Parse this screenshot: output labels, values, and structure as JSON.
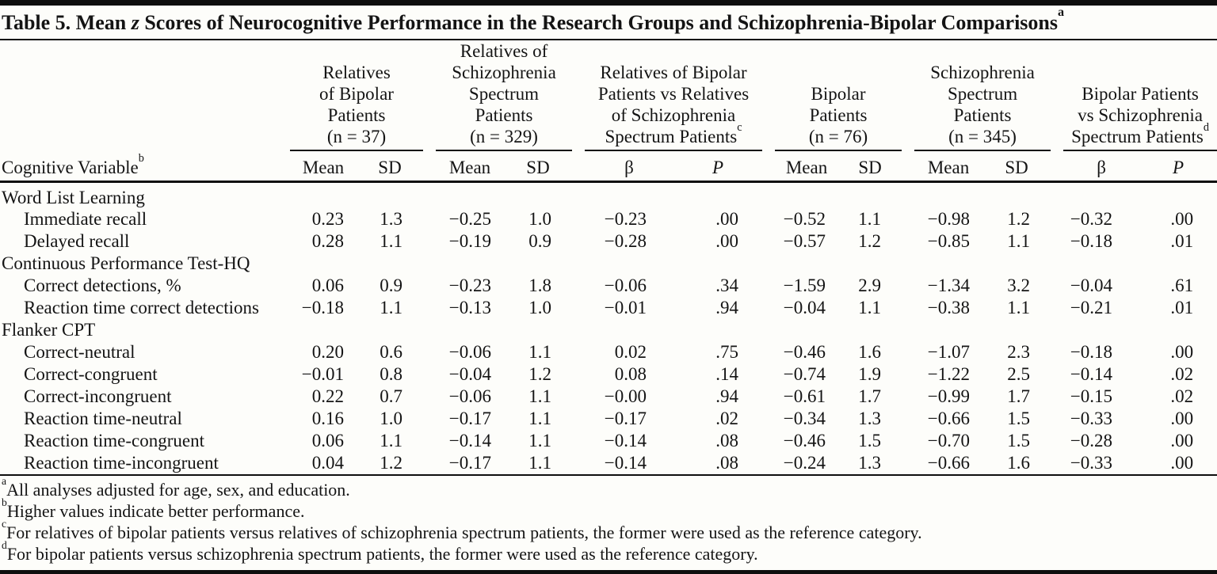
{
  "title": {
    "pre": "Table 5. Mean ",
    "italic": "z",
    "post": " Scores of Neurocognitive Performance in the Research Groups and Schizophrenia-Bipolar Comparisons",
    "sup": "a"
  },
  "header": {
    "row_label": {
      "text": "Cognitive Variable",
      "sup": "b"
    },
    "groups": [
      {
        "lines": "Relatives\nof Bipolar\nPatients\n(n = 37)",
        "sup": "",
        "sub": [
          "Mean",
          "SD"
        ]
      },
      {
        "lines": "Relatives of\nSchizophrenia\nSpectrum\nPatients\n(n = 329)",
        "sup": "",
        "sub": [
          "Mean",
          "SD"
        ]
      },
      {
        "lines": "Relatives of Bipolar\nPatients vs Relatives\nof Schizophrenia\nSpectrum Patients",
        "sup": "c",
        "sub": [
          "β",
          "P"
        ]
      },
      {
        "lines": "Bipolar\nPatients\n(n = 76)",
        "sup": "",
        "sub": [
          "Mean",
          "SD"
        ]
      },
      {
        "lines": "Schizophrenia\nSpectrum\nPatients\n(n = 345)",
        "sup": "",
        "sub": [
          "Mean",
          "SD"
        ]
      },
      {
        "lines": "Bipolar Patients\nvs Schizophrenia\nSpectrum Patients",
        "sup": "d",
        "sub": [
          "β",
          "P"
        ]
      }
    ]
  },
  "rows": [
    {
      "label": "Word List Learning",
      "indent": false,
      "values": []
    },
    {
      "label": "Immediate recall",
      "indent": true,
      "values": [
        "0.23",
        "1.3",
        "−0.25",
        "1.0",
        "−0.23",
        ".00",
        "−0.52",
        "1.1",
        "−0.98",
        "1.2",
        "−0.32",
        ".00"
      ]
    },
    {
      "label": "Delayed recall",
      "indent": true,
      "values": [
        "0.28",
        "1.1",
        "−0.19",
        "0.9",
        "−0.28",
        ".00",
        "−0.57",
        "1.2",
        "−0.85",
        "1.1",
        "−0.18",
        ".01"
      ]
    },
    {
      "label": "Continuous Performance Test-HQ",
      "indent": false,
      "values": []
    },
    {
      "label": "Correct detections, %",
      "indent": true,
      "values": [
        "0.06",
        "0.9",
        "−0.23",
        "1.8",
        "−0.06",
        ".34",
        "−1.59",
        "2.9",
        "−1.34",
        "3.2",
        "−0.04",
        ".61"
      ]
    },
    {
      "label": "Reaction time correct detections",
      "indent": true,
      "values": [
        "−0.18",
        "1.1",
        "−0.13",
        "1.0",
        "−0.01",
        ".94",
        "−0.04",
        "1.1",
        "−0.38",
        "1.1",
        "−0.21",
        ".01"
      ]
    },
    {
      "label": "Flanker CPT",
      "indent": false,
      "values": []
    },
    {
      "label": "Correct-neutral",
      "indent": true,
      "values": [
        "0.20",
        "0.6",
        "−0.06",
        "1.1",
        "0.02",
        ".75",
        "−0.46",
        "1.6",
        "−1.07",
        "2.3",
        "−0.18",
        ".00"
      ]
    },
    {
      "label": "Correct-congruent",
      "indent": true,
      "values": [
        "−0.01",
        "0.8",
        "−0.04",
        "1.2",
        "0.08",
        ".14",
        "−0.74",
        "1.9",
        "−1.22",
        "2.5",
        "−0.14",
        ".02"
      ]
    },
    {
      "label": "Correct-incongruent",
      "indent": true,
      "values": [
        "0.22",
        "0.7",
        "−0.06",
        "1.1",
        "−0.00",
        ".94",
        "−0.61",
        "1.7",
        "−0.99",
        "1.7",
        "−0.15",
        ".02"
      ]
    },
    {
      "label": "Reaction time-neutral",
      "indent": true,
      "values": [
        "0.16",
        "1.0",
        "−0.17",
        "1.1",
        "−0.17",
        ".02",
        "−0.34",
        "1.3",
        "−0.66",
        "1.5",
        "−0.33",
        ".00"
      ]
    },
    {
      "label": "Reaction time-congruent",
      "indent": true,
      "values": [
        "0.06",
        "1.1",
        "−0.14",
        "1.1",
        "−0.14",
        ".08",
        "−0.46",
        "1.5",
        "−0.70",
        "1.5",
        "−0.28",
        ".00"
      ]
    },
    {
      "label": "Reaction time-incongruent",
      "indent": true,
      "values": [
        "0.04",
        "1.2",
        "−0.17",
        "1.1",
        "−0.14",
        ".08",
        "−0.24",
        "1.3",
        "−0.66",
        "1.6",
        "−0.33",
        ".00"
      ]
    }
  ],
  "footnotes": [
    {
      "sup": "a",
      "text": "All analyses adjusted for age, sex, and education."
    },
    {
      "sup": "b",
      "text": "Higher values indicate better performance."
    },
    {
      "sup": "c",
      "text": "For relatives of bipolar patients versus relatives of schizophrenia spectrum patients, the former were used as the reference category."
    },
    {
      "sup": "d",
      "text": "For bipolar patients versus schizophrenia spectrum patients, the former were used as the reference category."
    }
  ]
}
